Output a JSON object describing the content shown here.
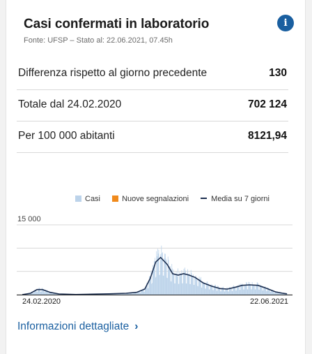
{
  "header": {
    "title": "Casi confermati in laboratorio",
    "source": "Fonte: UFSP – Stato al: 22.06.2021, 07.45h",
    "info_icon": "info-icon",
    "info_glyph": "i"
  },
  "stats": [
    {
      "label": "Differenza rispetto al giorno precedente",
      "value": "130"
    },
    {
      "label": "Totale dal 24.02.2020",
      "value": "702 124"
    },
    {
      "label": "Per 100 000 abitanti",
      "value": "8121,94"
    }
  ],
  "legend": {
    "cases": "Casi",
    "new_reports": "Nuove segnalazioni",
    "avg7": "Media su 7 giorni"
  },
  "colors": {
    "cases": "#bcd3ea",
    "new_reports": "#f08a1c",
    "avg7": "#1c2e4f",
    "link": "#1a5fa0"
  },
  "chart_data": {
    "type": "bar",
    "x_range": [
      "24.02.2020",
      "22.06.2021"
    ],
    "ylim": [
      0,
      15000
    ],
    "y_tick_label": "15 000",
    "x_tick_labels": [
      "24.02.2020",
      "22.06.2021"
    ],
    "series": [
      {
        "name": "Media su 7 giorni",
        "type": "line",
        "points": [
          [
            "2020-02-24",
            0
          ],
          [
            "2020-03-10",
            300
          ],
          [
            "2020-03-22",
            1100
          ],
          [
            "2020-04-01",
            1100
          ],
          [
            "2020-04-15",
            500
          ],
          [
            "2020-05-01",
            150
          ],
          [
            "2020-06-01",
            30
          ],
          [
            "2020-07-01",
            100
          ],
          [
            "2020-08-01",
            180
          ],
          [
            "2020-09-01",
            300
          ],
          [
            "2020-09-20",
            500
          ],
          [
            "2020-10-05",
            1200
          ],
          [
            "2020-10-15",
            3500
          ],
          [
            "2020-10-25",
            7000
          ],
          [
            "2020-11-03",
            8000
          ],
          [
            "2020-11-15",
            6500
          ],
          [
            "2020-11-25",
            4500
          ],
          [
            "2020-12-05",
            4200
          ],
          [
            "2020-12-15",
            4500
          ],
          [
            "2020-12-25",
            4200
          ],
          [
            "2021-01-05",
            3700
          ],
          [
            "2021-01-20",
            2500
          ],
          [
            "2021-02-05",
            1800
          ],
          [
            "2021-02-20",
            1300
          ],
          [
            "2021-03-05",
            1200
          ],
          [
            "2021-03-20",
            1600
          ],
          [
            "2021-04-01",
            2000
          ],
          [
            "2021-04-15",
            2100
          ],
          [
            "2021-04-30",
            2000
          ],
          [
            "2021-05-15",
            1400
          ],
          [
            "2021-06-01",
            600
          ],
          [
            "2021-06-15",
            280
          ],
          [
            "2021-06-22",
            180
          ]
        ]
      },
      {
        "name": "Casi",
        "type": "bar",
        "description_peak": 10000
      }
    ],
    "legend_position": "top-right",
    "grid": true
  },
  "footer": {
    "link_label": "Informazioni dettagliate",
    "chevron": "›"
  }
}
